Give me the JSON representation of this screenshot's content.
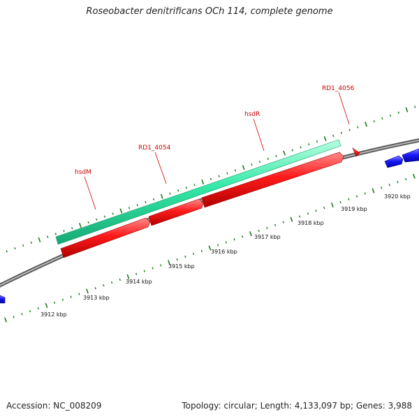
{
  "title": "Roseobacter denitrificans OCh 114, complete genome",
  "footer": {
    "accession": "Accession: NC_008209",
    "summary": "Topology: circular; Length: 4,133,097 bp; Genes: 3,988"
  },
  "colors": {
    "backbone": "#8a8a8a",
    "tick": "#1a7a1a",
    "gene_forward": "#ff1a1a",
    "gene_reverse": "#1a1aff",
    "cds_highlight": "#33e8a8",
    "label": "#cc0000"
  },
  "scale_ticks": [
    "3912 kbp",
    "3913 kbp",
    "3914 kbp",
    "3915 kbp",
    "3916 kbp",
    "3917 kbp",
    "3918 kbp",
    "3919 kbp",
    "3920 kbp"
  ],
  "gene_labels": [
    "hsdM",
    "RD1_4054",
    "hsdR",
    "RD1_4056"
  ]
}
